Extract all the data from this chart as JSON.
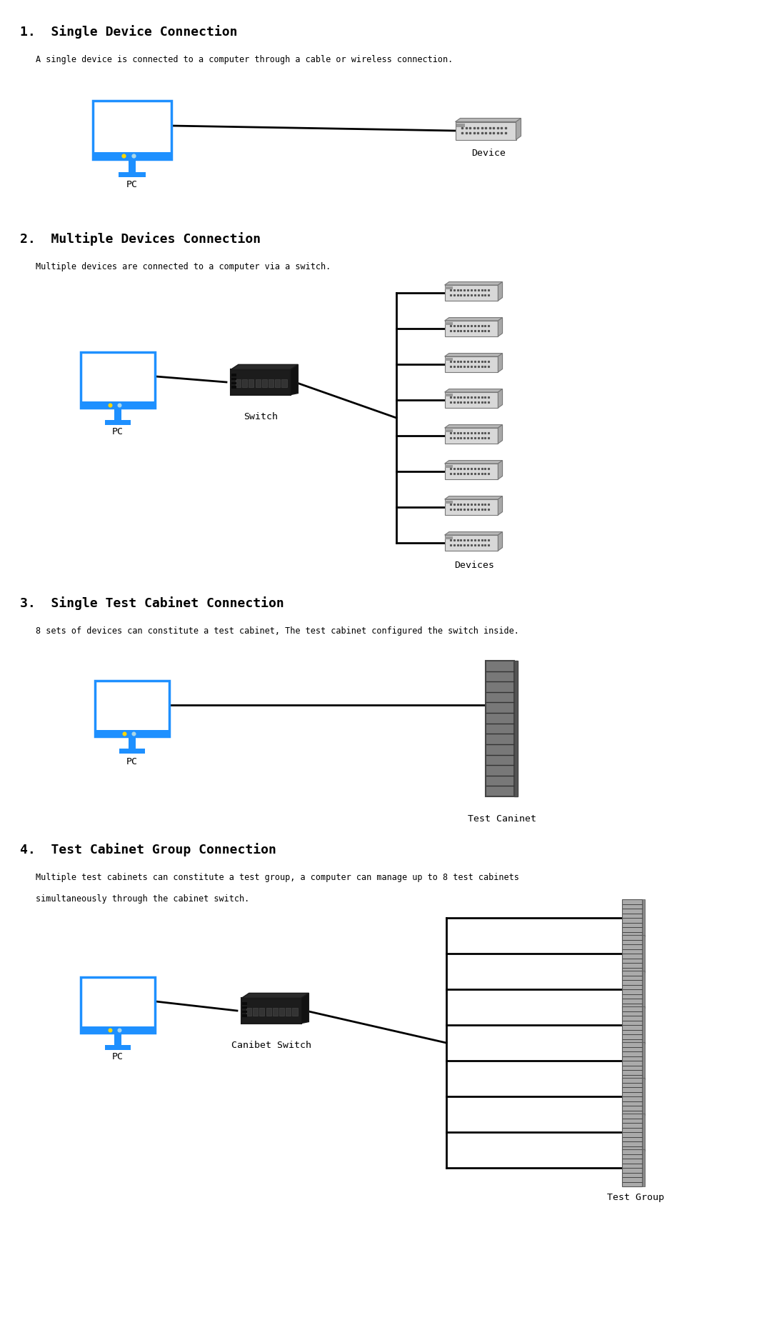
{
  "bg_color": "#ffffff",
  "title_color": "#000000",
  "text_color": "#000000",
  "monitor_border_color": "#1e90ff",
  "monitor_stand_color": "#1e90ff",
  "line_color": "#000000",
  "sections": [
    {
      "number": "1.",
      "title": "Single Device Connection",
      "description": "A single device is connected to a computer through a cable or wireless connection.",
      "type": "single"
    },
    {
      "number": "2.",
      "title": "Multiple Devices Connection",
      "description": "Multiple devices are connected to a computer via a switch.",
      "type": "multiple"
    },
    {
      "number": "3.",
      "title": "Single Test Cabinet Connection",
      "description": "8 sets of devices can constitute a test cabinet, The test cabinet configured the switch inside.",
      "type": "cabinet_single"
    },
    {
      "number": "4.",
      "title": "Test Cabinet Group Connection",
      "description": "Multiple test cabinets can constitute a test group, a computer can manage up to 8 test cabinets\nsimultaneously through the cabinet switch.",
      "type": "cabinet_group"
    }
  ],
  "label_pc": "PC",
  "label_device": "Device",
  "label_devices": "Devices",
  "label_switch": "Switch",
  "label_test_cabinet": "Test Caninet",
  "label_cabinet_switch": "Canibet Switch",
  "label_test_group": "Test Group",
  "title_fontsize": 13,
  "body_fontsize": 8.5,
  "label_fontsize": 9.5
}
